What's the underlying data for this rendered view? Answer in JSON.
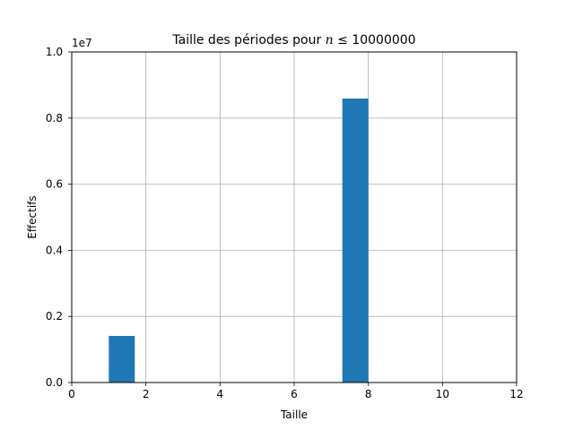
{
  "chart_data": {
    "type": "bar",
    "title_prefix": "Taille des périodes pour ",
    "title_var": "n",
    "title_suffix": " ≤ 10000000",
    "xlabel": "Taille",
    "ylabel": "Effectifs",
    "y_offset_label": "1e7",
    "xlim": [
      0,
      12
    ],
    "ylim": [
      0,
      1.0
    ],
    "grid": true,
    "x_ticks": [
      0,
      2,
      4,
      6,
      8,
      10,
      12
    ],
    "y_ticks": [
      0.0,
      0.2,
      0.4,
      0.6,
      0.8,
      1.0
    ],
    "x_tick_labels": [
      "0",
      "2",
      "4",
      "6",
      "8",
      "10",
      "12"
    ],
    "y_tick_labels": [
      "0.0",
      "0.2",
      "0.4",
      "0.6",
      "0.8",
      "1.0"
    ],
    "bars": [
      {
        "x_start": 1.0,
        "x_end": 1.7,
        "value": 0.141
      },
      {
        "x_start": 7.3,
        "x_end": 8.0,
        "value": 0.859
      }
    ],
    "bar_color": "#1f77b4",
    "grid_color": "#b0b0b0"
  }
}
